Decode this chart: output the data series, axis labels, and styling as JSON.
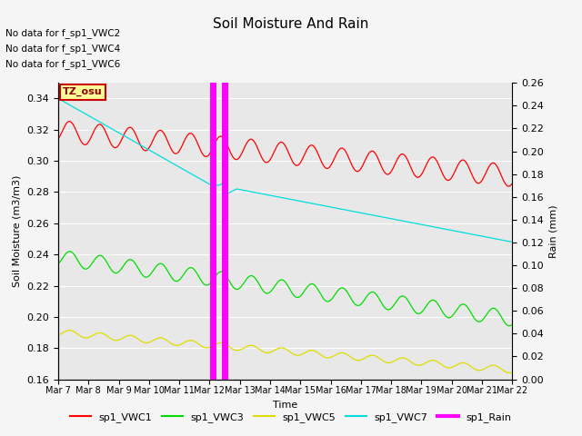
{
  "title": "Soil Moisture And Rain",
  "xlabel": "Time",
  "ylabel_left": "Soil Moisture (m3/m3)",
  "ylabel_right": "Rain (mm)",
  "no_data_text": [
    "No data for f_sp1_VWC2",
    "No data for f_sp1_VWC4",
    "No data for f_sp1_VWC6"
  ],
  "tz_label": "TZ_osu",
  "ylim_left": [
    0.16,
    0.35
  ],
  "ylim_right": [
    0.0,
    0.26
  ],
  "xtick_labels": [
    "Mar 7",
    "Mar 8",
    "Mar 9",
    "Mar 10",
    "Mar 11",
    "Mar 12",
    "Mar 13",
    "Mar 14",
    "Mar 15",
    "Mar 16",
    "Mar 17",
    "Mar 18",
    "Mar 19",
    "Mar 20",
    "Mar 21",
    "Mar 22"
  ],
  "yticks_left": [
    0.16,
    0.18,
    0.2,
    0.22,
    0.24,
    0.26,
    0.28,
    0.3,
    0.32,
    0.34
  ],
  "yticks_right": [
    0.0,
    0.02,
    0.04,
    0.06,
    0.08,
    0.1,
    0.12,
    0.14,
    0.16,
    0.18,
    0.2,
    0.22,
    0.24,
    0.26
  ],
  "colors": {
    "VWC1": "#ff0000",
    "VWC3": "#00dd00",
    "VWC5": "#dddd00",
    "VWC7": "#00dddd",
    "Rain": "#ff00ff"
  },
  "rain_spikes": [
    5.1,
    5.5
  ],
  "fig_bg_color": "#f5f5f5",
  "plot_bg_color": "#e8e8e8"
}
